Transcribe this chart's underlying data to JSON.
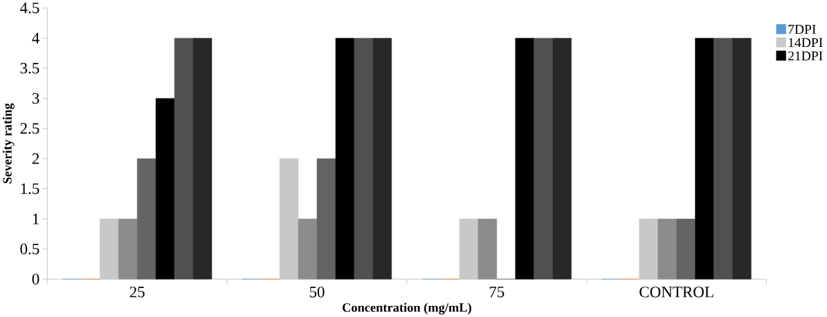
{
  "chart_data": {
    "type": "bar",
    "xlabel": "Concentration (mg/mL)",
    "ylabel": "Severity rating",
    "categories": [
      "25",
      "50",
      "75",
      "CONTROL"
    ],
    "series": [
      {
        "name": "7DPI",
        "color": "#5b9bd5",
        "values": [
          0,
          0,
          0,
          0
        ]
      },
      {
        "color": "#ed7d31",
        "values": [
          0,
          0,
          0,
          0
        ]
      },
      {
        "name": "14DPI",
        "color": "#c8c8c8",
        "values": [
          1,
          2,
          1,
          1
        ]
      },
      {
        "color": "#8c8c8c",
        "values": [
          1,
          1,
          1,
          1
        ]
      },
      {
        "color": "#646464",
        "values": [
          2,
          2,
          0,
          1
        ]
      },
      {
        "name": "21DPI",
        "color": "#000000",
        "values": [
          3,
          4,
          4,
          4
        ]
      },
      {
        "color": "#505050",
        "values": [
          4,
          4,
          4,
          4
        ]
      },
      {
        "color": "#282828",
        "values": [
          4,
          4,
          4,
          4
        ]
      }
    ],
    "ylim": [
      0,
      4.5
    ],
    "yticks": [
      0,
      0.5,
      1,
      1.5,
      2,
      2.5,
      3,
      3.5,
      4,
      4.5
    ],
    "grid": false,
    "legend": "right"
  }
}
